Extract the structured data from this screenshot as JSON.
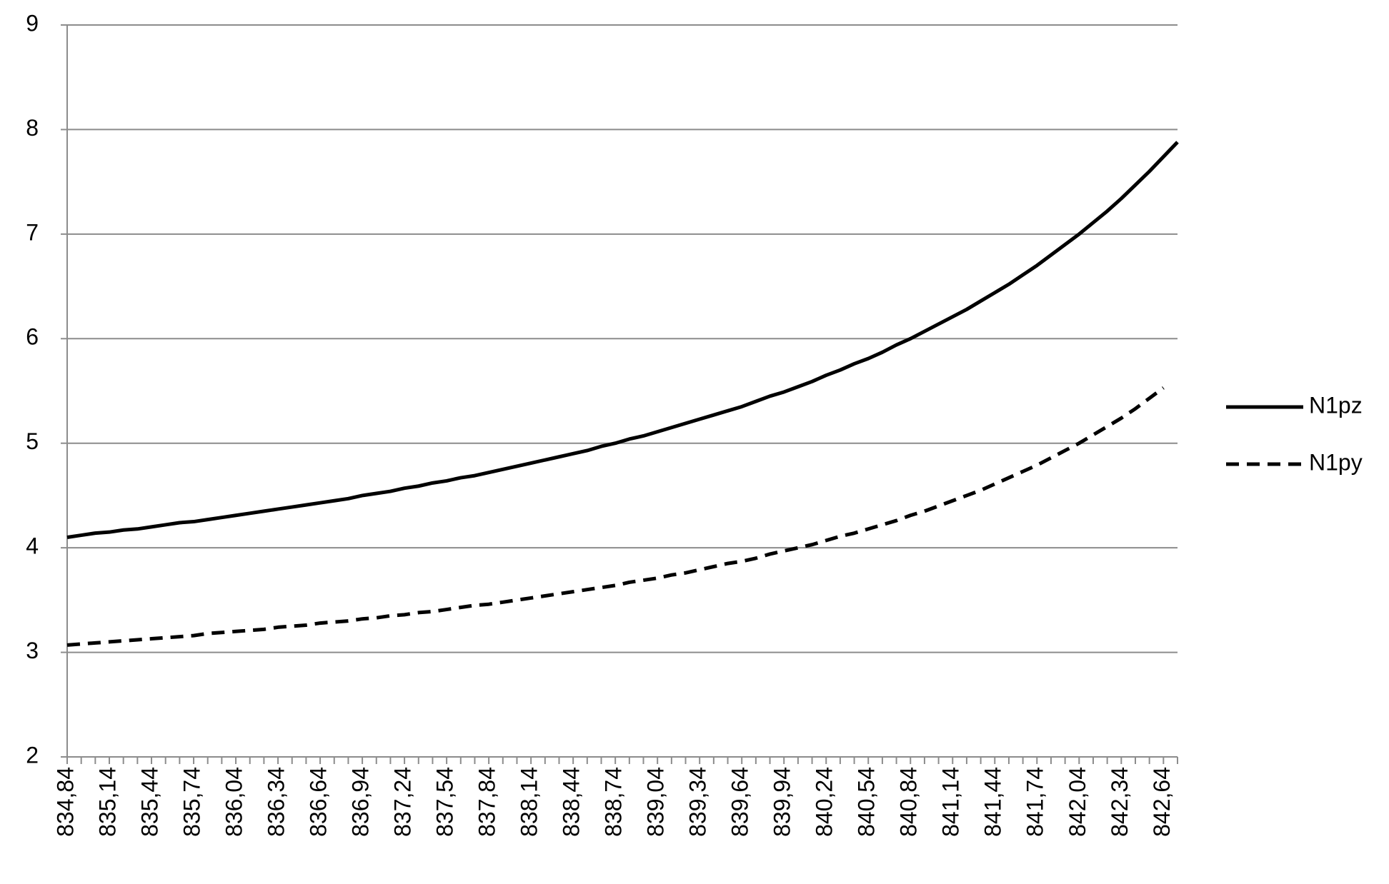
{
  "chart_data": {
    "type": "line",
    "categories": [
      "834,84",
      null,
      null,
      "835,14",
      null,
      null,
      "835,44",
      null,
      null,
      "835,74",
      null,
      null,
      "836,04",
      null,
      null,
      "836,34",
      null,
      null,
      "836,64",
      null,
      null,
      "836,94",
      null,
      null,
      "837,24",
      null,
      null,
      "837,54",
      null,
      null,
      "837,84",
      null,
      null,
      "838,14",
      null,
      null,
      "838,44",
      null,
      null,
      "838,74",
      null,
      null,
      "839,04",
      null,
      null,
      "839,34",
      null,
      null,
      "839,64",
      null,
      null,
      "839,94",
      null,
      null,
      "840,24",
      null,
      null,
      "840,54",
      null,
      null,
      "840,84",
      null,
      null,
      "841,14",
      null,
      null,
      "841,44",
      null,
      null,
      "841,74",
      null,
      null,
      "842,04",
      null,
      null,
      "842,34",
      null,
      null,
      "842,64",
      null
    ],
    "series": [
      {
        "name": "N1pz",
        "color": "#000000",
        "dashed": false,
        "values": [
          4.1,
          4.12,
          4.14,
          4.15,
          4.17,
          4.18,
          4.2,
          4.22,
          4.24,
          4.25,
          4.27,
          4.29,
          4.31,
          4.33,
          4.35,
          4.37,
          4.39,
          4.41,
          4.43,
          4.45,
          4.47,
          4.5,
          4.52,
          4.54,
          4.57,
          4.59,
          4.62,
          4.64,
          4.67,
          4.69,
          4.72,
          4.75,
          4.78,
          4.81,
          4.84,
          4.87,
          4.9,
          4.93,
          4.97,
          5.0,
          5.04,
          5.07,
          5.11,
          5.15,
          5.19,
          5.23,
          5.27,
          5.31,
          5.35,
          5.4,
          5.45,
          5.49,
          5.54,
          5.59,
          5.65,
          5.7,
          5.76,
          5.81,
          5.87,
          5.94,
          6.0,
          6.07,
          6.14,
          6.21,
          6.28,
          6.36,
          6.44,
          6.52,
          6.61,
          6.7,
          6.8,
          6.9,
          7.0,
          7.11,
          7.22,
          7.34,
          7.47,
          7.6,
          7.74,
          7.88
        ]
      },
      {
        "name": "N1py",
        "color": "#000000",
        "dashed": true,
        "values": [
          3.07,
          3.08,
          3.09,
          3.1,
          3.11,
          3.12,
          3.13,
          3.14,
          3.15,
          3.16,
          3.18,
          3.19,
          3.2,
          3.21,
          3.22,
          3.24,
          3.25,
          3.26,
          3.28,
          3.29,
          3.3,
          3.32,
          3.33,
          3.35,
          3.36,
          3.38,
          3.39,
          3.41,
          3.43,
          3.45,
          3.46,
          3.48,
          3.5,
          3.52,
          3.54,
          3.56,
          3.58,
          3.6,
          3.62,
          3.64,
          3.67,
          3.69,
          3.71,
          3.74,
          3.76,
          3.79,
          3.82,
          3.85,
          3.87,
          3.9,
          3.94,
          3.97,
          4.0,
          4.03,
          4.07,
          4.11,
          4.14,
          4.18,
          4.22,
          4.26,
          4.31,
          4.35,
          4.4,
          4.45,
          4.5,
          4.55,
          4.61,
          4.67,
          4.73,
          4.79,
          4.86,
          4.93,
          5.0,
          5.08,
          5.16,
          5.24,
          5.33,
          5.43,
          5.53,
          null
        ]
      }
    ],
    "ylim": [
      2,
      9
    ],
    "yticks": [
      2,
      3,
      4,
      5,
      6,
      7,
      8,
      9
    ],
    "grid": true,
    "legend": "right"
  }
}
